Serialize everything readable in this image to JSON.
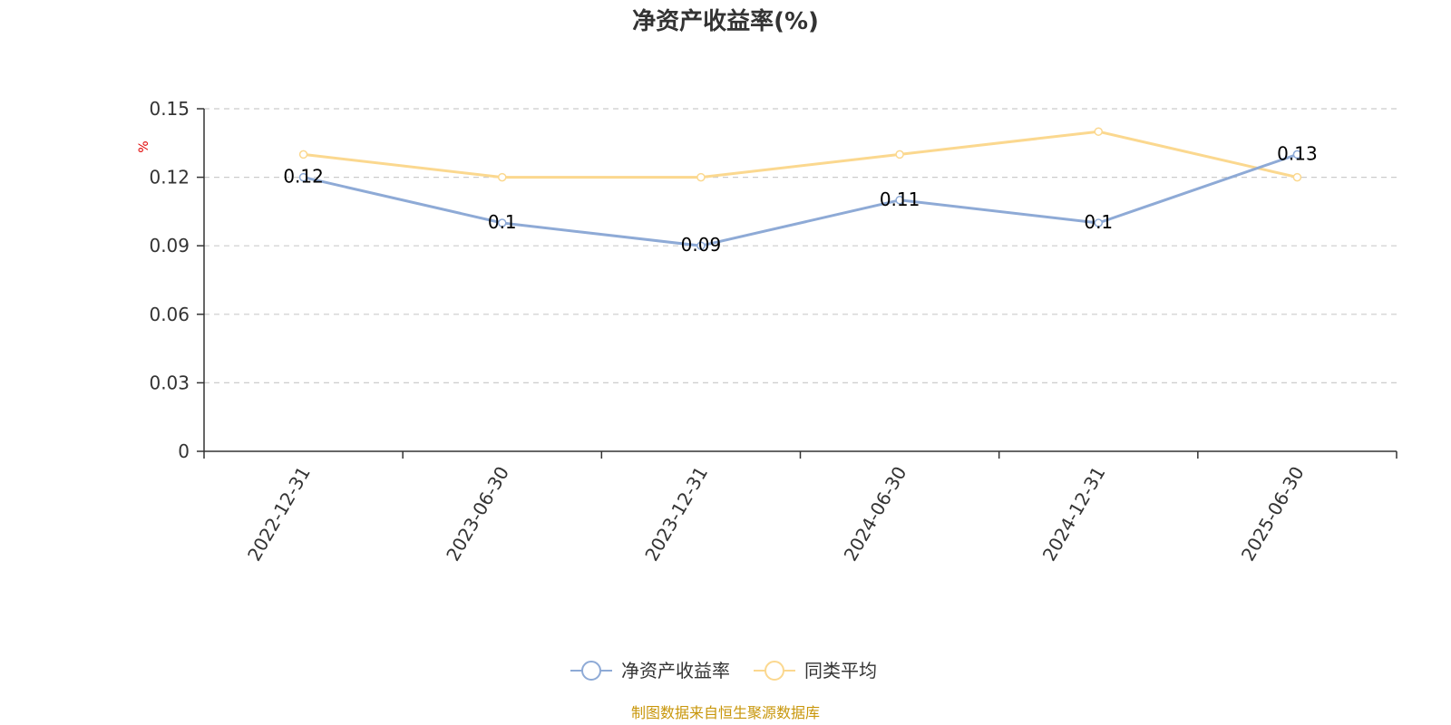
{
  "chart_data": {
    "type": "line",
    "title": "净资产收益率(%)",
    "ylabel": "%",
    "categories": [
      "2022-12-31",
      "2023-06-30",
      "2023-12-31",
      "2024-06-30",
      "2024-12-31",
      "2025-06-30"
    ],
    "ylim": [
      0,
      0.15
    ],
    "yticks": [
      "0",
      "0.03",
      "0.06",
      "0.09",
      "0.12",
      "0.15"
    ],
    "grid": true,
    "legend_position": "bottom",
    "series": [
      {
        "name": "净资产收益率",
        "values": [
          0.12,
          0.1,
          0.09,
          0.11,
          0.1,
          0.13
        ],
        "labels": [
          "0.12",
          "0.1",
          "0.09",
          "0.11",
          "0.1",
          "0.13"
        ],
        "color": "#8eaad6",
        "show_labels": true
      },
      {
        "name": "同类平均",
        "values": [
          0.13,
          0.12,
          0.12,
          0.13,
          0.14,
          0.12
        ],
        "color": "#fbd88f",
        "show_labels": false
      }
    ]
  },
  "source": "制图数据来自恒生聚源数据库"
}
